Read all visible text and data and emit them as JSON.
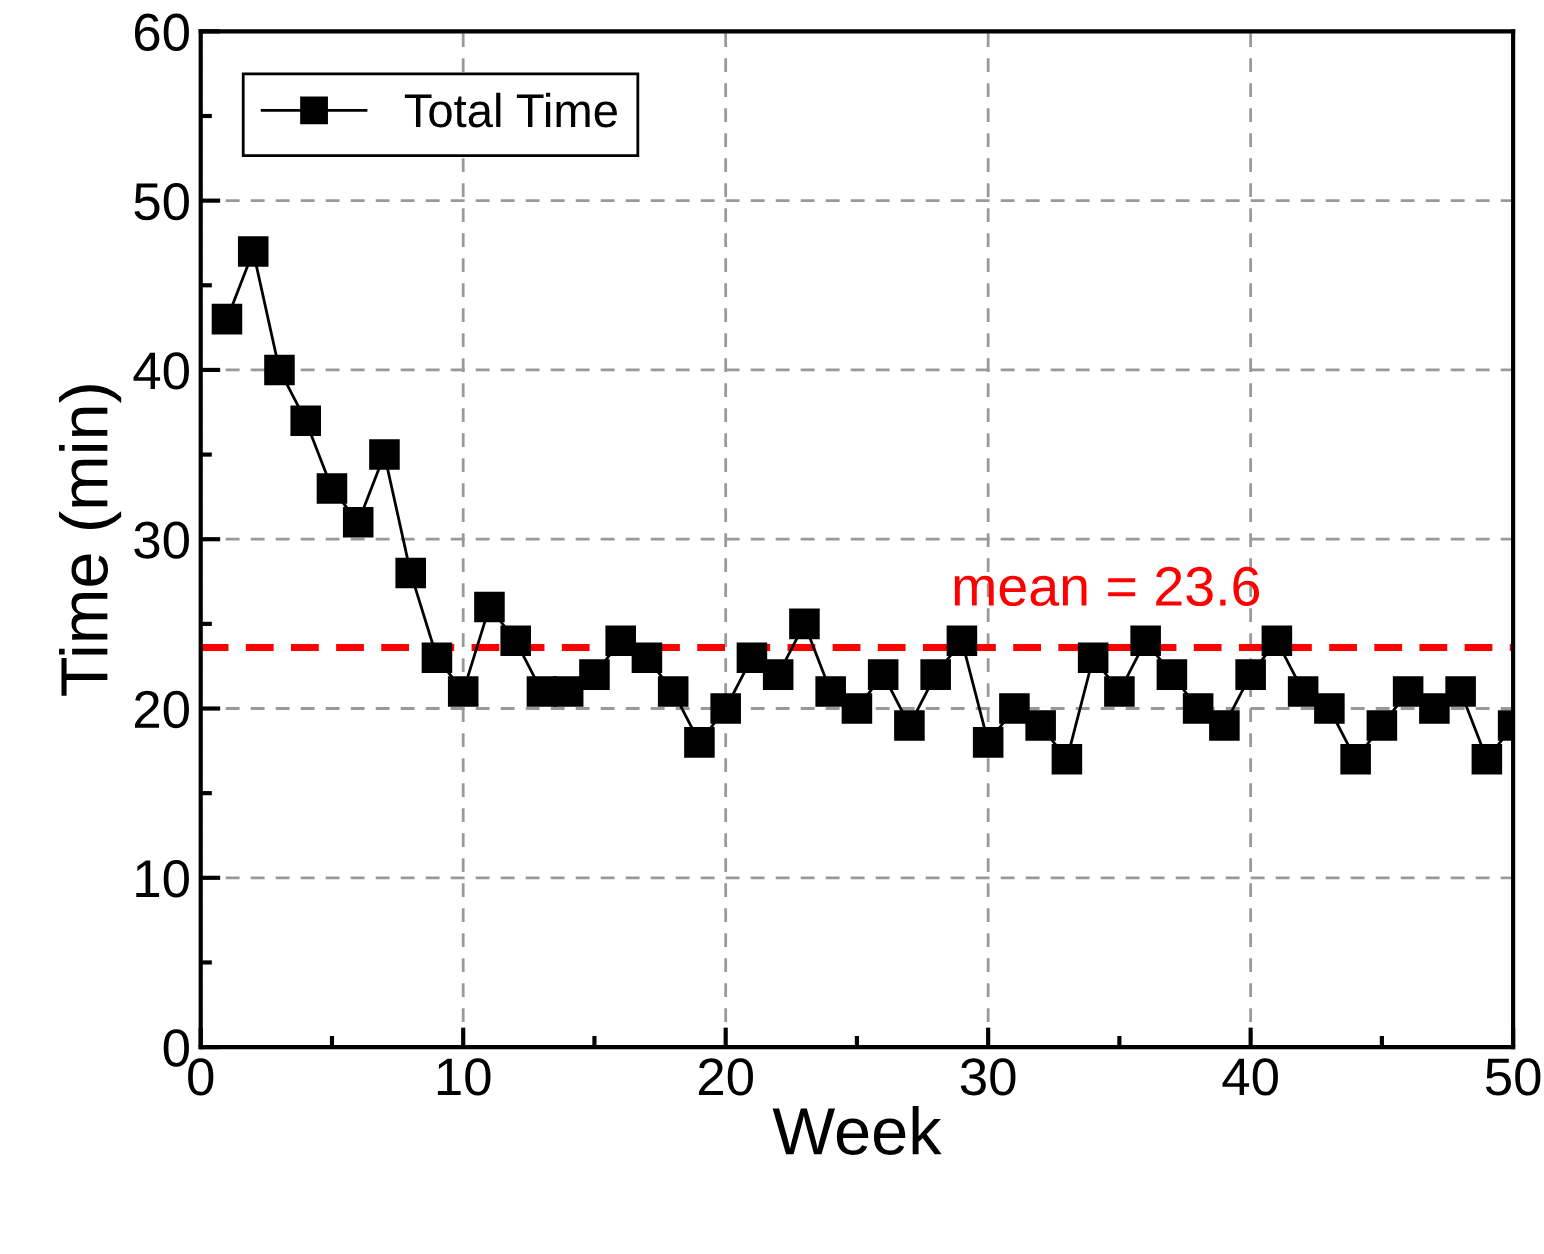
{
  "chart_data": {
    "type": "line",
    "xlabel": "Week",
    "ylabel": "Time (min)",
    "x": [
      1,
      2,
      3,
      4,
      5,
      6,
      7,
      8,
      9,
      10,
      11,
      12,
      13,
      14,
      15,
      16,
      17,
      18,
      19,
      20,
      21,
      22,
      23,
      24,
      25,
      26,
      27,
      28,
      29,
      30,
      31,
      32,
      33,
      34,
      35,
      36,
      37,
      38,
      39,
      40,
      41,
      42,
      43,
      44,
      45,
      46,
      47,
      48,
      49,
      50
    ],
    "series": [
      {
        "name": "Total Time",
        "color": "#000000",
        "values": [
          43,
          47,
          40,
          37,
          33,
          31,
          35,
          28,
          23,
          21,
          26,
          24,
          21,
          21,
          22,
          24,
          23,
          21,
          18,
          20,
          23,
          22,
          25,
          21,
          20,
          22,
          19,
          22,
          24,
          18,
          20,
          19,
          17,
          23,
          21,
          24,
          22,
          20,
          19,
          22,
          24,
          21,
          20,
          17,
          19,
          21,
          20,
          21,
          17,
          19
        ]
      }
    ],
    "xlim": [
      0,
      50
    ],
    "xticks": [
      0,
      10,
      20,
      30,
      40,
      50
    ],
    "ylim": [
      0,
      60
    ],
    "yticks": [
      0,
      10,
      20,
      30,
      40,
      50,
      60
    ],
    "ref_lines": [
      {
        "axis": "y",
        "value": 23.6,
        "label": "mean = 23.6",
        "color": "#ff0000",
        "line_style": "dashed"
      }
    ],
    "grid": true,
    "legend": "top left",
    "marker": "square",
    "line_style": "solid"
  }
}
